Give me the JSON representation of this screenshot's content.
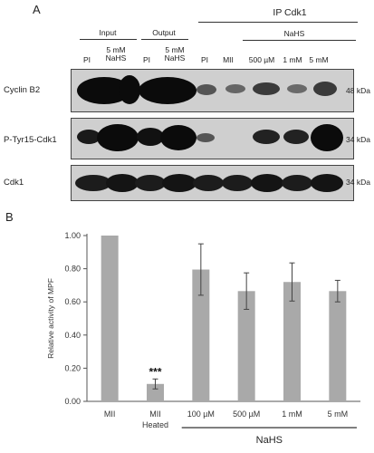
{
  "panel_a": {
    "letter": "A",
    "groups": {
      "input": "Input",
      "output": "Output",
      "ip": "IP Cdk1",
      "nahs": "NaHS"
    },
    "lanes": {
      "pi_1": "PI",
      "nahs_1": "5 mM\nNaHS",
      "pi_2": "PI",
      "nahs_2": "5 mM\nNaHS",
      "pi_3": "PI",
      "mii": "MII",
      "c500": "500 µM",
      "c1": "1 mM",
      "c5": "5 mM"
    },
    "rows": [
      {
        "label": "Cyclin B2",
        "kda": "48 kDa"
      },
      {
        "label": "P-Tyr15-Cdk1",
        "kda": "34 kDa"
      },
      {
        "label": "Cdk1",
        "kda": "34 kDa"
      }
    ]
  },
  "panel_b_letter": "B",
  "chart_data": {
    "type": "bar",
    "categories": [
      "MII",
      "MII\nHeated",
      "100 µM",
      "500 µM",
      "1 mM",
      "5 mM"
    ],
    "values": [
      1.0,
      0.105,
      0.795,
      0.665,
      0.72,
      0.665
    ],
    "errors": [
      0.0,
      0.03,
      0.155,
      0.11,
      0.115,
      0.065
    ],
    "annotation": {
      "category_index": 1,
      "text": "***"
    },
    "ylabel": "Relative activity of MPF",
    "xlabel": "",
    "group_label": {
      "text": "NaHS",
      "spans": [
        "100 µM",
        "5 mM"
      ]
    },
    "ylim": [
      0,
      1.0
    ],
    "yticks": [
      "0.00",
      "0.20",
      "0.40",
      "0.60",
      "0.80",
      "1.00"
    ],
    "bar_color": "#a9a9a9",
    "grid": false
  }
}
